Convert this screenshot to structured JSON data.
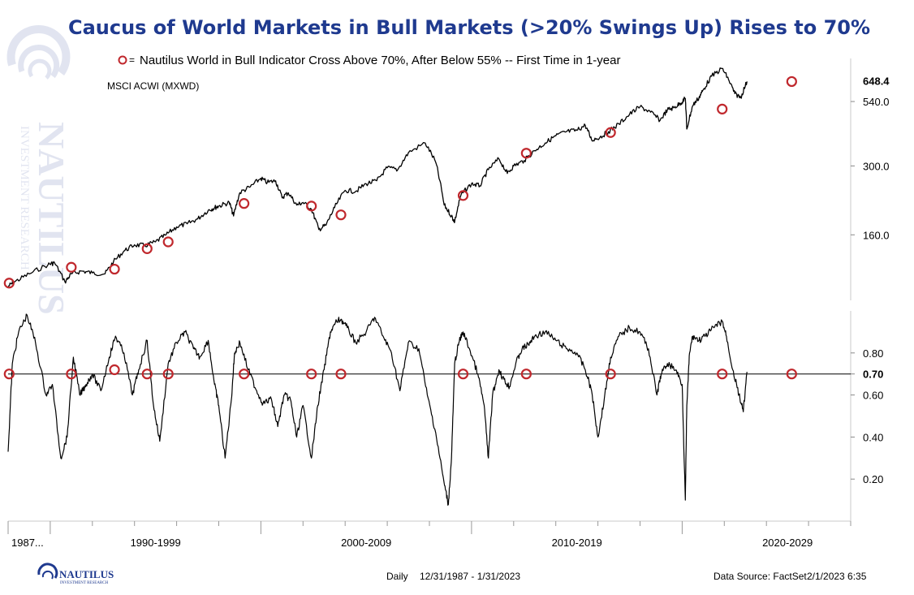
{
  "title": "Caucus of World Markets in Bull Markets (>20% Swings Up) Rises to 70%",
  "legend": {
    "marker_label": "=",
    "text": "Nautilus World in Bull Indicator Cross Above 70%, After Below 55% -- First Time in 1-year"
  },
  "footer": {
    "frequency": "Daily",
    "range": "12/31/1987 - 1/31/2023",
    "source": "Data Source: FactSet",
    "stamp": "2/1/2023 6:35"
  },
  "logo": {
    "name": "NAUTILUS",
    "tagline": "INVESTMENT RESEARCH"
  },
  "watermark": {
    "name": "NAUTILUS",
    "tagline": "INVESTMENT RESEARCH"
  },
  "colors": {
    "title": "#1f3a8f",
    "marker": "#c0282d",
    "line": "#000000"
  },
  "chart_data": [
    {
      "type": "line",
      "title": "MSCI ACWI (MXWD)",
      "scale": "log",
      "last_value_label": "648.4",
      "yticks": [
        540,
        300,
        160
      ],
      "ytick_labels": [
        "540.0",
        "300.0",
        "160.0"
      ],
      "ylim": [
        88,
        800
      ],
      "xlim": [
        1988.0,
        2028.0
      ],
      "series": [
        {
          "x": [
            1988.0,
            1988.3,
            1989.0,
            1989.9,
            1990.2,
            1990.7,
            1991.0,
            1991.5,
            1992.0,
            1992.6,
            1993.0,
            1993.5,
            1994.0,
            1994.5,
            1995.0,
            1995.5,
            1996.0,
            1996.5,
            1997.0,
            1997.5,
            1997.8,
            1998.0,
            1998.5,
            1998.7,
            1999.0,
            1999.5,
            2000.0,
            2000.3,
            2000.7,
            2001.0,
            2001.3,
            2001.7,
            2002.0,
            2002.4,
            2002.75,
            2003.1,
            2003.5,
            2004.0,
            2004.5,
            2005.0,
            2005.5,
            2006.0,
            2006.5,
            2007.0,
            2007.8,
            2008.3,
            2008.7,
            2009.05,
            2009.2,
            2009.5,
            2010.0,
            2010.4,
            2010.8,
            2011.3,
            2011.7,
            2012.0,
            2012.5,
            2013.0,
            2013.5,
            2014.0,
            2014.5,
            2015.0,
            2015.4,
            2015.7,
            2016.1,
            2016.5,
            2017.0,
            2017.5,
            2018.0,
            2018.5,
            2018.95,
            2019.3,
            2019.6,
            2019.9,
            2020.15,
            2020.22,
            2020.5,
            2020.8,
            2021.0,
            2021.4,
            2021.9,
            2022.2,
            2022.5,
            2022.78,
            2023.08
          ],
          "y": [
            100,
            104,
            112,
            122,
            124,
            104,
            112,
            115,
            113,
            112,
            125,
            138,
            146,
            145,
            150,
            160,
            172,
            177,
            185,
            200,
            205,
            208,
            215,
            190,
            235,
            248,
            268,
            258,
            262,
            225,
            235,
            210,
            215,
            202,
            168,
            175,
            205,
            240,
            238,
            255,
            262,
            295,
            290,
            338,
            370,
            310,
            210,
            190,
            180,
            230,
            255,
            250,
            290,
            320,
            280,
            300,
            315,
            345,
            370,
            395,
            410,
            415,
            435,
            380,
            390,
            410,
            440,
            480,
            515,
            490,
            455,
            500,
            510,
            530,
            555,
            420,
            520,
            560,
            600,
            680,
            730,
            660,
            580,
            560,
            648.4
          ]
        }
      ],
      "markers": {
        "x": [
          1988.05,
          1991.0,
          1993.05,
          1994.6,
          1995.6,
          1999.2,
          2002.4,
          2003.8,
          2009.6,
          2012.6,
          2016.6,
          2021.9,
          2025.2
        ],
        "y": [
          103,
          119,
          117,
          141,
          150,
          213,
          208,
          192,
          229,
          337,
          407,
          504,
          648
        ]
      }
    },
    {
      "type": "line",
      "title": "",
      "yticks": [
        0.2,
        0.4,
        0.6,
        0.7,
        0.8
      ],
      "ytick_labels": [
        "0.20",
        "0.40",
        "0.60",
        "0.70",
        "0.80"
      ],
      "bold_ticks": [
        "0.70"
      ],
      "ylim": [
        0.0,
        1.0
      ],
      "xlim": [
        1988.0,
        2028.0
      ],
      "reference_line": 0.7,
      "x_tick_labels": [
        "1987...",
        "1990-1999",
        "2000-2009",
        "2010-2019",
        "2020-2029"
      ],
      "series": [
        {
          "x": [
            1988.0,
            1988.2,
            1988.5,
            1988.9,
            1989.3,
            1989.8,
            1990.1,
            1990.5,
            1990.8,
            1991.1,
            1991.4,
            1991.7,
            1992.0,
            1992.4,
            1992.8,
            1993.1,
            1993.5,
            1993.9,
            1994.2,
            1994.6,
            1994.9,
            1995.2,
            1995.6,
            1996.0,
            1996.4,
            1996.8,
            1997.1,
            1997.5,
            1997.8,
            1998.0,
            1998.3,
            1998.6,
            1998.75,
            1999.0,
            1999.4,
            1999.8,
            2000.1,
            2000.5,
            2000.8,
            2001.1,
            2001.4,
            2001.7,
            2002.0,
            2002.4,
            2002.7,
            2003.0,
            2003.3,
            2003.6,
            2003.8,
            2004.1,
            2004.5,
            2005.0,
            2005.4,
            2005.8,
            2006.2,
            2006.6,
            2007.0,
            2007.5,
            2007.9,
            2008.3,
            2008.7,
            2008.9,
            2009.05,
            2009.2,
            2009.4,
            2009.6,
            2009.9,
            2010.3,
            2010.6,
            2010.8,
            2011.0,
            2011.3,
            2011.6,
            2011.8,
            2012.1,
            2012.4,
            2012.7,
            2013.0,
            2013.5,
            2014.0,
            2014.5,
            2015.0,
            2015.4,
            2015.7,
            2016.0,
            2016.3,
            2016.6,
            2017.0,
            2017.5,
            2018.0,
            2018.4,
            2018.8,
            2019.0,
            2019.3,
            2019.7,
            2020.0,
            2020.15,
            2020.22,
            2020.35,
            2020.5,
            2020.8,
            2021.1,
            2021.5,
            2021.9,
            2022.1,
            2022.4,
            2022.7,
            2022.9,
            2023.08
          ],
          "y": [
            0.33,
            0.75,
            0.9,
            0.98,
            0.85,
            0.6,
            0.65,
            0.3,
            0.4,
            0.78,
            0.6,
            0.65,
            0.7,
            0.62,
            0.78,
            0.88,
            0.8,
            0.6,
            0.72,
            0.86,
            0.55,
            0.38,
            0.75,
            0.85,
            0.9,
            0.82,
            0.78,
            0.86,
            0.65,
            0.55,
            0.3,
            0.58,
            0.8,
            0.85,
            0.72,
            0.62,
            0.56,
            0.58,
            0.45,
            0.6,
            0.58,
            0.4,
            0.55,
            0.3,
            0.55,
            0.72,
            0.9,
            0.95,
            0.96,
            0.92,
            0.85,
            0.9,
            0.97,
            0.88,
            0.8,
            0.62,
            0.85,
            0.82,
            0.6,
            0.42,
            0.18,
            0.08,
            0.3,
            0.75,
            0.85,
            0.9,
            0.82,
            0.7,
            0.55,
            0.3,
            0.6,
            0.72,
            0.66,
            0.64,
            0.75,
            0.82,
            0.84,
            0.88,
            0.9,
            0.86,
            0.82,
            0.8,
            0.72,
            0.62,
            0.4,
            0.58,
            0.78,
            0.88,
            0.92,
            0.9,
            0.82,
            0.6,
            0.7,
            0.75,
            0.72,
            0.65,
            0.1,
            0.55,
            0.8,
            0.88,
            0.86,
            0.88,
            0.92,
            0.95,
            0.88,
            0.72,
            0.6,
            0.52,
            0.71
          ]
        }
      ],
      "markers": {
        "x": [
          1988.05,
          1991.0,
          1993.05,
          1994.6,
          1995.6,
          1999.2,
          2002.4,
          2003.8,
          2009.6,
          2012.6,
          2016.6,
          2021.9,
          2025.2
        ],
        "y": [
          0.7,
          0.7,
          0.72,
          0.7,
          0.7,
          0.7,
          0.7,
          0.7,
          0.7,
          0.7,
          0.7,
          0.7,
          0.7
        ]
      }
    }
  ]
}
